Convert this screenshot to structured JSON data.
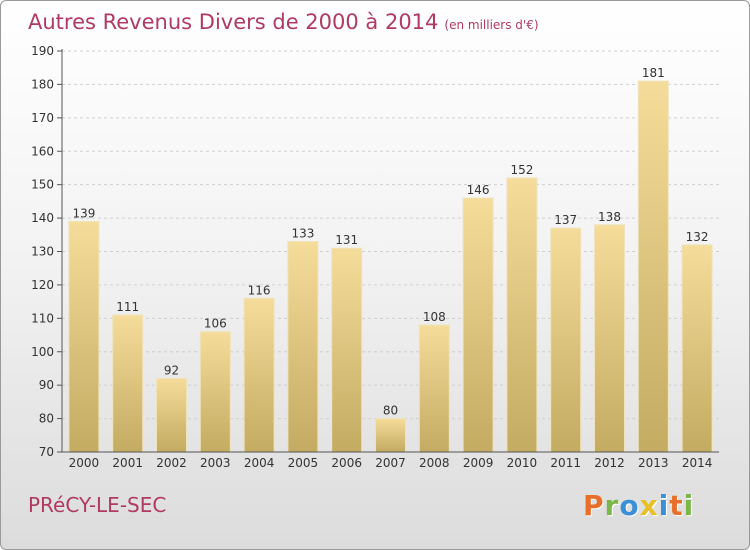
{
  "colors": {
    "title": "#b03a63",
    "bar_top": "#f5dc9a",
    "bar_bottom": "#c4ab62"
  },
  "chart_data": {
    "type": "bar",
    "title": "Autres Revenus Divers de 2000 à 2014",
    "subtitle": "(en milliers d'€)",
    "categories": [
      "2000",
      "2001",
      "2002",
      "2003",
      "2004",
      "2005",
      "2006",
      "2007",
      "2008",
      "2009",
      "2010",
      "2011",
      "2012",
      "2013",
      "2014"
    ],
    "values": [
      139,
      111,
      92,
      106,
      116,
      133,
      131,
      80,
      108,
      146,
      152,
      137,
      138,
      181,
      132
    ],
    "ylim": [
      70,
      190
    ],
    "yticks": [
      70,
      80,
      90,
      100,
      110,
      120,
      130,
      140,
      150,
      160,
      170,
      180,
      190
    ],
    "grid": true,
    "data_labels": true
  },
  "footer": {
    "town": "PRéCY-LE-SEC",
    "logo_letters": [
      "P",
      "r",
      "o",
      "x",
      "i",
      "t",
      "i"
    ],
    "logo_colors": [
      "#e86f2a",
      "#7ab648",
      "#3a8fd6",
      "#e8c025",
      "#3a8fd6",
      "#e86f2a",
      "#7ab648"
    ]
  }
}
